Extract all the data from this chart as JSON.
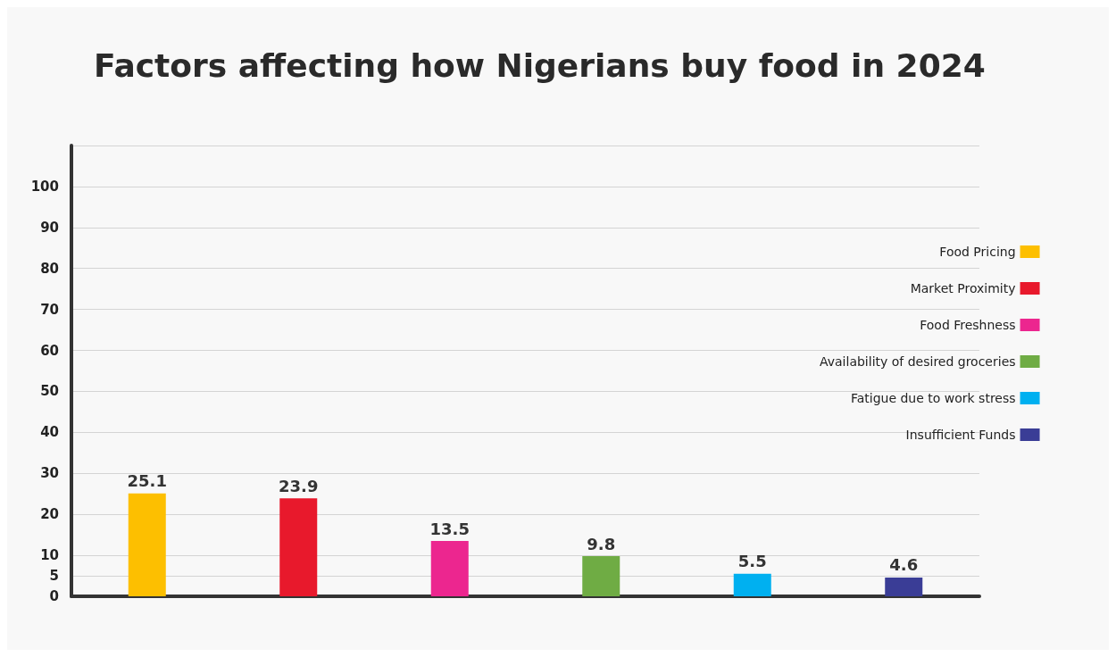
{
  "chart_data": {
    "type": "bar",
    "title": "Factors affecting how Nigerians buy food in 2024",
    "categories": [
      null,
      null,
      null,
      null,
      null,
      null
    ],
    "series": [
      {
        "name": "Food Pricing",
        "color": "#fdbf00",
        "values": [
          25.1,
          null,
          null,
          null,
          null,
          null
        ]
      },
      {
        "name": "Market Proximity",
        "color": "#e8192c",
        "values": [
          null,
          23.9,
          null,
          null,
          null,
          null
        ]
      },
      {
        "name": "Food Freshness",
        "color": "#ec268f",
        "values": [
          null,
          null,
          13.5,
          null,
          null,
          null
        ]
      },
      {
        "name": "Availability of desired groceries",
        "color": "#6fac44",
        "values": [
          null,
          null,
          null,
          9.8,
          null,
          null
        ]
      },
      {
        "name": "Fatigue due to work stress",
        "color": "#00b0f0",
        "values": [
          null,
          null,
          null,
          null,
          5.5,
          null
        ]
      },
      {
        "name": "Insufficient Funds",
        "color": "#3a3d96",
        "values": [
          null,
          null,
          null,
          null,
          null,
          4.6
        ]
      }
    ],
    "ylim": [
      0,
      110
    ],
    "yticks": [
      0,
      5,
      10,
      20,
      30,
      40,
      50,
      60,
      70,
      80,
      90,
      100,
      {
        "value": 110,
        "label": null
      }
    ],
    "grid": "y",
    "legend": "right",
    "data_labels": true
  }
}
